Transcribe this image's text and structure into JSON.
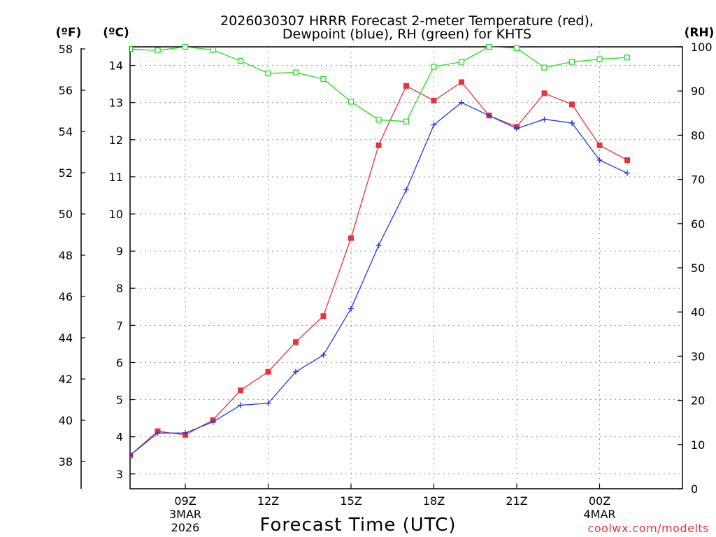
{
  "chart_data": {
    "type": "line",
    "title_line1": "2026030307 HRRR Forecast 2-meter Temperature (red),",
    "title_line2": "Dewpoint (blue), RH (green) for KHTS",
    "xlabel": "Forecast Time (UTC)",
    "credit": "coolwx.com/modelts",
    "units": {
      "fahrenheit": "(ºF)",
      "celsius": "(ºC)",
      "rh": "(RH)"
    },
    "x_range": [
      7,
      27
    ],
    "celsius_range": [
      2.6,
      14.5
    ],
    "rh_range": [
      0,
      100
    ],
    "fahrenheit_ticks": [
      "38",
      "40",
      "42",
      "44",
      "46",
      "48",
      "50",
      "52",
      "54",
      "56",
      "58"
    ],
    "celsius_ticks": [
      "3",
      "4",
      "5",
      "6",
      "7",
      "8",
      "9",
      "10",
      "11",
      "12",
      "13",
      "14"
    ],
    "rh_ticks": [
      "0",
      "10",
      "20",
      "30",
      "40",
      "50",
      "60",
      "70",
      "80",
      "90",
      "100"
    ],
    "x_ticks": [
      {
        "hour": 9,
        "label": "09Z",
        "sub1": "3MAR",
        "sub2": "2026"
      },
      {
        "hour": 12,
        "label": "12Z"
      },
      {
        "hour": 15,
        "label": "15Z"
      },
      {
        "hour": 18,
        "label": "18Z"
      },
      {
        "hour": 21,
        "label": "21Z"
      },
      {
        "hour": 24,
        "label": "00Z",
        "sub1": "4MAR"
      }
    ],
    "x": [
      7,
      8,
      9,
      10,
      11,
      12,
      13,
      14,
      15,
      16,
      17,
      18,
      19,
      20,
      21,
      22,
      23,
      24,
      25
    ],
    "series": [
      {
        "name": "Temperature",
        "axis": "celsius",
        "color": "#e8333a",
        "marker": "filled-square",
        "values": [
          3.5,
          4.15,
          4.05,
          4.45,
          5.25,
          5.75,
          6.55,
          7.25,
          9.35,
          11.85,
          13.45,
          13.05,
          13.55,
          12.65,
          12.35,
          13.25,
          12.95,
          11.85,
          11.45
        ]
      },
      {
        "name": "Dewpoint",
        "axis": "celsius",
        "color": "#2038e8",
        "marker": "plus",
        "values": [
          3.5,
          4.1,
          4.1,
          4.4,
          4.85,
          4.9,
          5.75,
          6.2,
          7.45,
          9.15,
          10.65,
          12.4,
          13.0,
          12.65,
          12.3,
          12.55,
          12.45,
          11.45,
          11.1
        ]
      },
      {
        "name": "RH",
        "axis": "rh",
        "color": "#22dd22",
        "marker": "open-square",
        "values": [
          99.5,
          99.2,
          100,
          99.3,
          96.8,
          94.0,
          94.2,
          92.7,
          87.6,
          83.5,
          83.1,
          95.5,
          96.6,
          100,
          99.7,
          95.3,
          96.6,
          97.2,
          97.6
        ]
      }
    ]
  }
}
